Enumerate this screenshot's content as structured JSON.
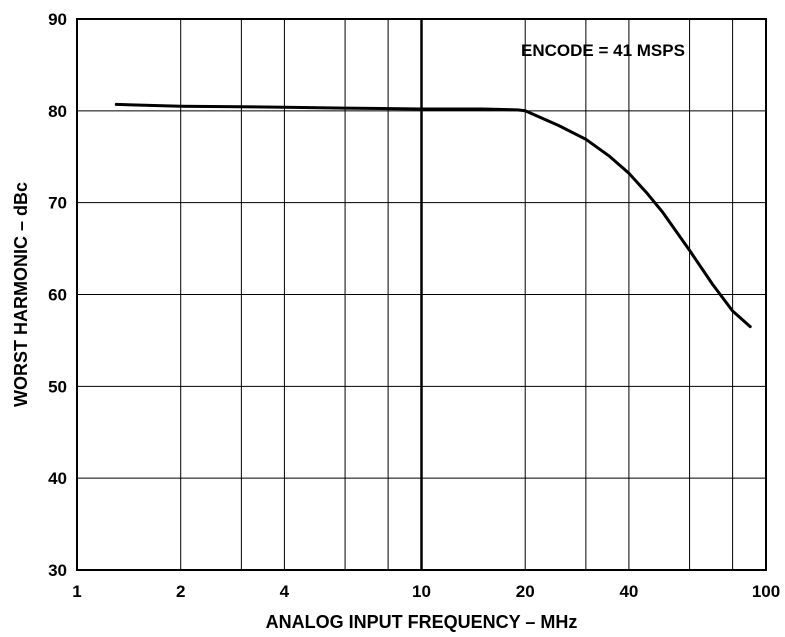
{
  "chart_data": {
    "type": "line",
    "xlabel": "ANALOG INPUT FREQUENCY – MHz",
    "ylabel": "WORST HARMONIC – dBc",
    "x_scale": "log",
    "xlim": [
      1,
      100
    ],
    "ylim": [
      30,
      90
    ],
    "x_tick_labels": [
      "1",
      "2",
      "4",
      "10",
      "20",
      "40",
      "100"
    ],
    "x_ticks": [
      1,
      2,
      4,
      10,
      20,
      40,
      100
    ],
    "x_minor_gridlines": [
      3,
      6,
      8,
      30,
      60,
      80
    ],
    "y_ticks": [
      30,
      40,
      50,
      60,
      70,
      80,
      90
    ],
    "y_tick_labels": [
      "30",
      "40",
      "50",
      "60",
      "70",
      "80",
      "90"
    ],
    "grid": true,
    "annotation": "ENCODE = 41 MSPS",
    "annotation_position": "top-right",
    "series": [
      {
        "color": "#000000",
        "x": [
          1.3,
          2,
          4,
          6,
          10,
          15,
          19,
          20,
          25,
          30,
          35,
          40,
          45,
          50,
          60,
          70,
          80,
          90
        ],
        "y": [
          80.7,
          80.5,
          80.4,
          80.3,
          80.2,
          80.2,
          80.1,
          80.0,
          78.4,
          76.9,
          75.1,
          73.2,
          71.1,
          69.0,
          64.8,
          61.1,
          58.2,
          56.5
        ]
      }
    ]
  }
}
